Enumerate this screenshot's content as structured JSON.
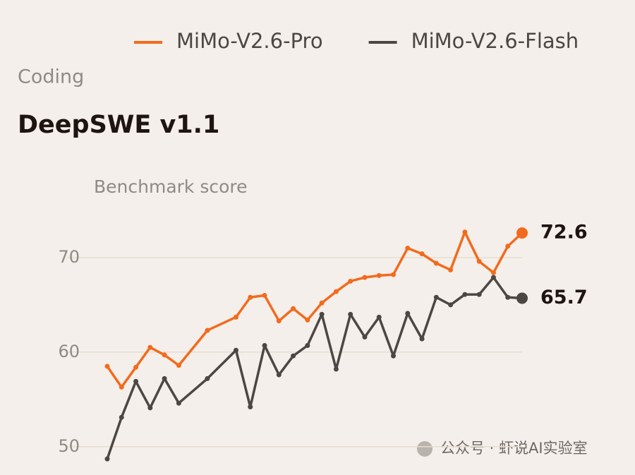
{
  "chart_data": {
    "type": "line",
    "category_label": "Coding",
    "title": "DeepSWE v1.1",
    "y_label": "Benchmark score",
    "x": [
      0,
      1,
      2,
      3,
      4,
      5,
      7,
      9,
      10,
      11,
      12,
      13,
      14,
      15,
      16,
      17,
      18,
      19,
      20,
      21,
      22,
      23,
      24,
      25,
      26,
      27,
      28,
      29
    ],
    "xlim": [
      0,
      29
    ],
    "ylim": [
      47,
      75
    ],
    "yticks": [
      50,
      60,
      70
    ],
    "grid": true,
    "legend": "top",
    "series": [
      {
        "name": "MiMo-V2.6-Pro",
        "color": "#f26b1d",
        "values": [
          58.5,
          56.3,
          58.4,
          60.5,
          59.7,
          58.6,
          62.3,
          63.7,
          65.8,
          66.0,
          63.3,
          64.6,
          63.4,
          65.2,
          66.4,
          67.5,
          67.9,
          68.1,
          68.2,
          71.0,
          70.4,
          69.4,
          68.7,
          72.7,
          69.6,
          68.4,
          71.2,
          72.6
        ]
      },
      {
        "name": "MiMo-V2.6-Flash",
        "color": "#4d4744",
        "values": [
          48.7,
          53.1,
          56.9,
          54.1,
          57.2,
          54.6,
          57.2,
          60.2,
          54.2,
          60.7,
          57.6,
          59.6,
          60.7,
          64.0,
          58.2,
          64.0,
          61.6,
          63.7,
          59.6,
          64.1,
          61.4,
          65.8,
          65.0,
          66.1,
          66.1,
          67.9,
          65.8,
          65.7
        ]
      }
    ],
    "watermark": "公众号 · 虾说AI实验室"
  }
}
